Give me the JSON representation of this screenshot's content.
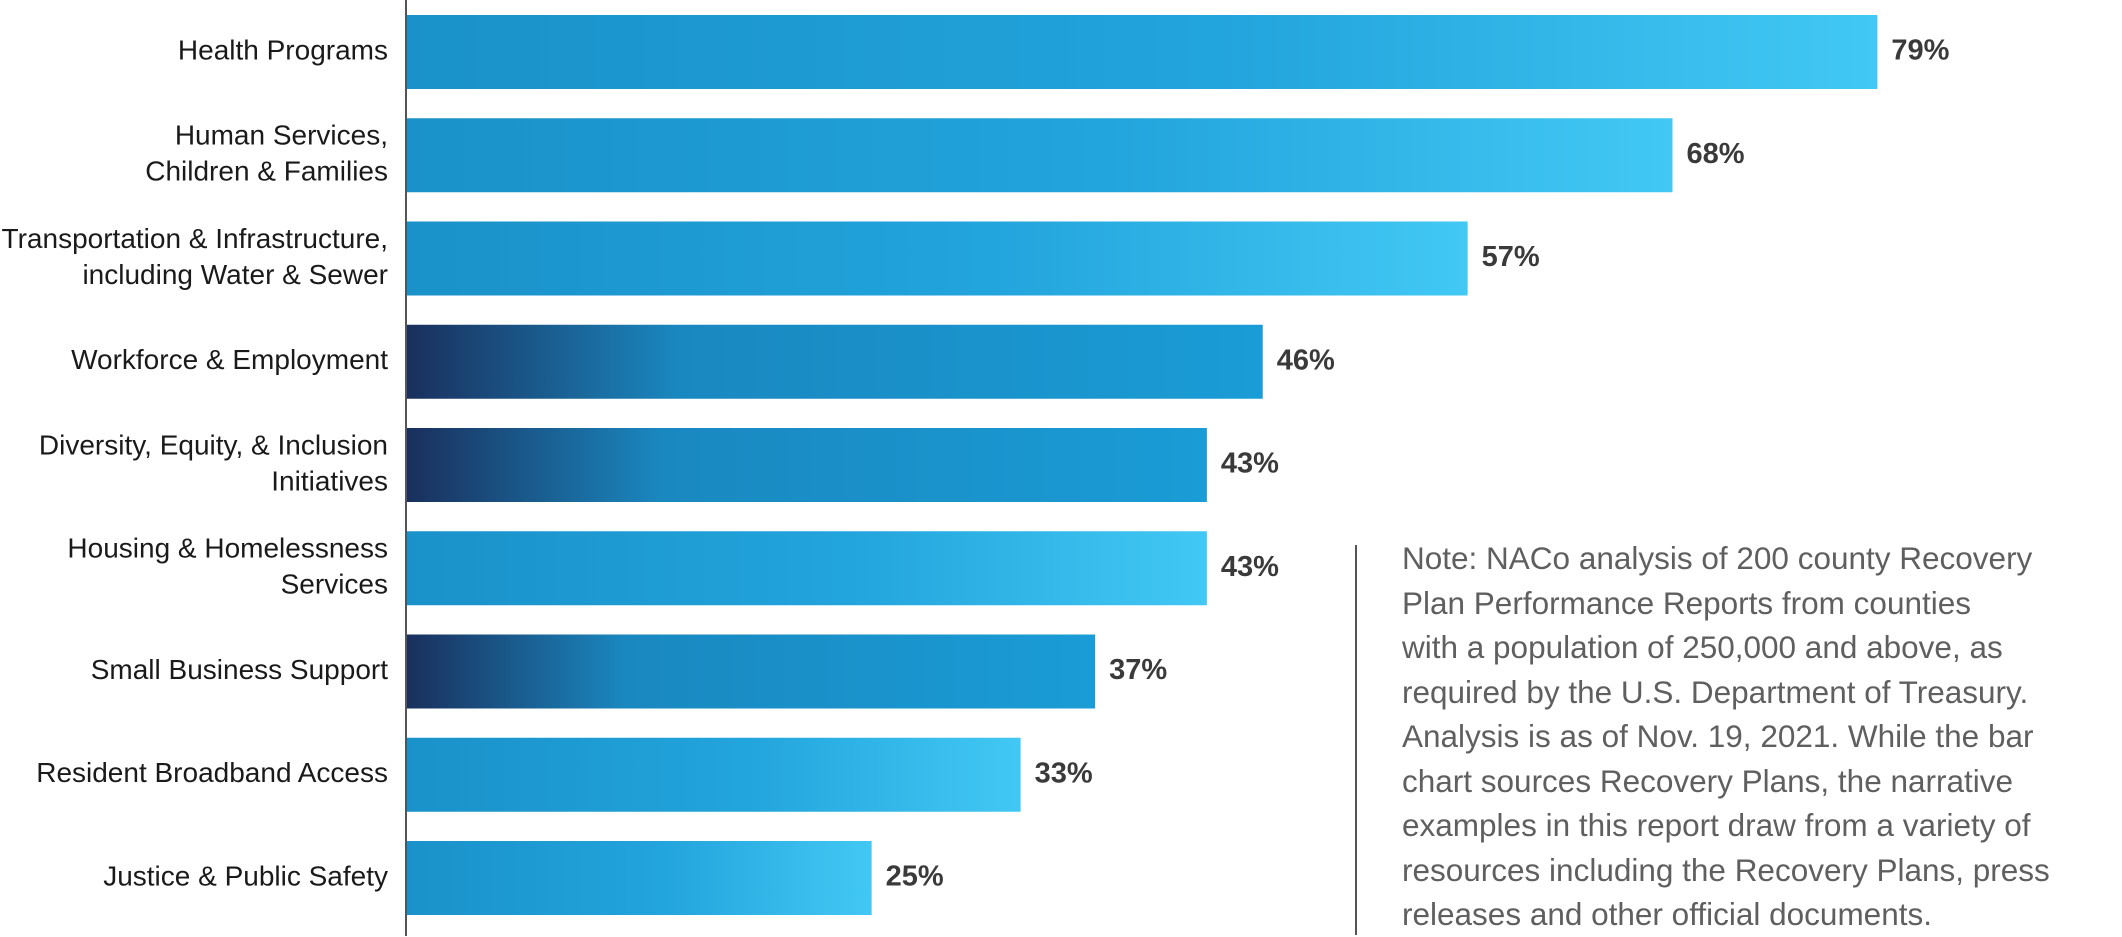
{
  "chart_data": {
    "type": "bar",
    "orientation": "horizontal",
    "categories": [
      [
        "Health Programs"
      ],
      [
        "Human Services,",
        "Children & Families"
      ],
      [
        "Transportation & Infrastructure,",
        "including Water & Sewer"
      ],
      [
        "Workforce & Employment"
      ],
      [
        "Diversity, Equity, & Inclusion",
        "Initiatives"
      ],
      [
        "Housing & Homelessness",
        "Services"
      ],
      [
        "Small Business Support"
      ],
      [
        "Resident Broadband Access"
      ],
      [
        "Justice & Public Safety"
      ]
    ],
    "values": [
      79,
      68,
      57,
      46,
      43,
      43,
      37,
      33,
      25
    ],
    "value_labels": [
      "79%",
      "68%",
      "57%",
      "46%",
      "43%",
      "43%",
      "37%",
      "33%",
      "25%"
    ],
    "bar_style": [
      "light",
      "light",
      "light",
      "dark",
      "dark",
      "light",
      "dark",
      "light",
      "light"
    ],
    "unit": "%",
    "xlim": [
      0,
      100
    ],
    "grid": false,
    "legend": "none",
    "colors": {
      "bar_dark_start": "#1a2f5c",
      "bar_mid": "#1a91c9",
      "bar_light_end": "#42c8f4",
      "axis": "#555555"
    }
  },
  "note": {
    "lines": [
      "Note: NACo analysis of 200 county Recovery",
      "Plan Performance Reports from counties",
      "with a population of 250,000 and above, as",
      "required by the U.S. Department of Treasury.",
      "Analysis is as of Nov. 19, 2021. While the bar",
      "chart sources Recovery Plans, the narrative",
      "examples in this report draw from a variety of",
      "resources including the Recovery Plans, press",
      "releases and other official documents."
    ]
  }
}
